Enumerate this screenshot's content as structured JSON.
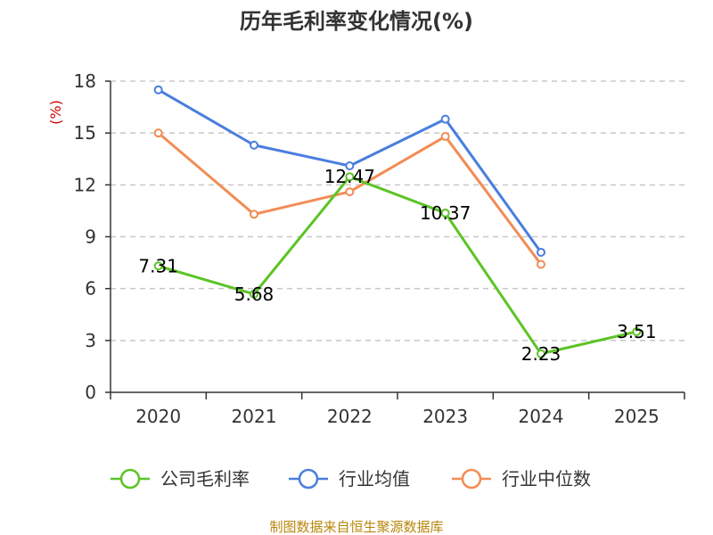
{
  "chart_data": {
    "type": "line",
    "title": "历年毛利率变化情况(%)",
    "ylabel": "(%)",
    "xlabel": "",
    "categories": [
      "2020",
      "2021",
      "2022",
      "2023",
      "2024",
      "2025"
    ],
    "y_ticks": [
      "0",
      "3",
      "6",
      "9",
      "12",
      "15",
      "18"
    ],
    "ylim": [
      0,
      18
    ],
    "grid": "horizontal dashed",
    "series": [
      {
        "name": "公司毛利率",
        "color": "#5cc425",
        "values": [
          7.31,
          5.68,
          12.47,
          10.37,
          2.23,
          3.51
        ],
        "labels": [
          "7.31",
          "5.68",
          "12.47",
          "10.37",
          "2.23",
          "3.51"
        ]
      },
      {
        "name": "行业均值",
        "color": "#4a7ede",
        "values": [
          17.5,
          14.3,
          13.1,
          15.8,
          8.1,
          null
        ]
      },
      {
        "name": "行业中位数",
        "color": "#f28c55",
        "values": [
          15.0,
          10.3,
          11.6,
          14.8,
          7.4,
          null
        ]
      }
    ],
    "legend_position": "bottom",
    "source": "制图数据来自恒生聚源数据库"
  }
}
